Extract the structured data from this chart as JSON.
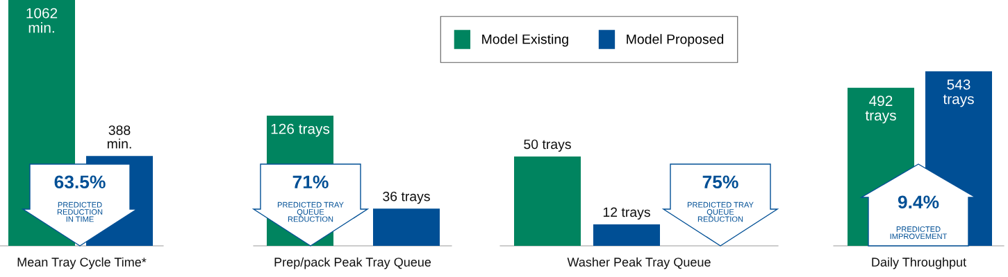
{
  "chart_data": [
    {
      "type": "bar",
      "categories": [
        null
      ],
      "xlabel": "Mean Tray Cycle Time*",
      "legend": "top",
      "data_labels": true,
      "series": [
        {
          "name": "Model Existing",
          "color": "#00845f",
          "values": [
            1062
          ],
          "value_labels": [
            "1062\nmin."
          ]
        },
        {
          "name": "Model Proposed",
          "color": "#004f95",
          "values": [
            388
          ],
          "value_labels": [
            "388\nmin."
          ]
        }
      ],
      "annotations": [
        "63.5%",
        "PREDICTED\nREDUCTION\nIN TIME"
      ]
    },
    {
      "type": "bar",
      "categories": [
        null
      ],
      "xlabel": "Prep/pack Peak Tray Queue",
      "data_labels": true,
      "series": [
        {
          "name": "Model Existing",
          "color": "#00845f",
          "values": [
            126
          ],
          "value_labels": [
            "126 trays"
          ]
        },
        {
          "name": "Model Proposed",
          "color": "#004f95",
          "values": [
            36
          ],
          "value_labels": [
            "36 trays"
          ]
        }
      ],
      "annotations": [
        "71%",
        "PREDICTED TRAY\nQUEUE\nREDUCTION"
      ]
    },
    {
      "type": "bar",
      "categories": [
        null
      ],
      "xlabel": "Washer Peak Tray Queue",
      "data_labels": true,
      "series": [
        {
          "name": "Model Existing",
          "color": "#00845f",
          "values": [
            50
          ],
          "value_labels": [
            "50 trays"
          ]
        },
        {
          "name": "Model Proposed",
          "color": "#004f95",
          "values": [
            12
          ],
          "value_labels": [
            "12 trays"
          ]
        }
      ],
      "annotations": [
        "75%",
        "PREDICTED TRAY\nQUEUE\nREDUCTION"
      ]
    },
    {
      "type": "bar",
      "categories": [
        null
      ],
      "xlabel": "Daily Throughput",
      "data_labels": true,
      "series": [
        {
          "name": "Model Existing",
          "color": "#00845f",
          "values": [
            492
          ],
          "value_labels": [
            "492\ntrays"
          ]
        },
        {
          "name": "Model Proposed",
          "color": "#004f95",
          "values": [
            543
          ],
          "value_labels": [
            "543\ntrays"
          ]
        }
      ],
      "annotations": [
        "9.4%",
        "PREDICTED\nIMPROVEMENT"
      ]
    }
  ]
}
